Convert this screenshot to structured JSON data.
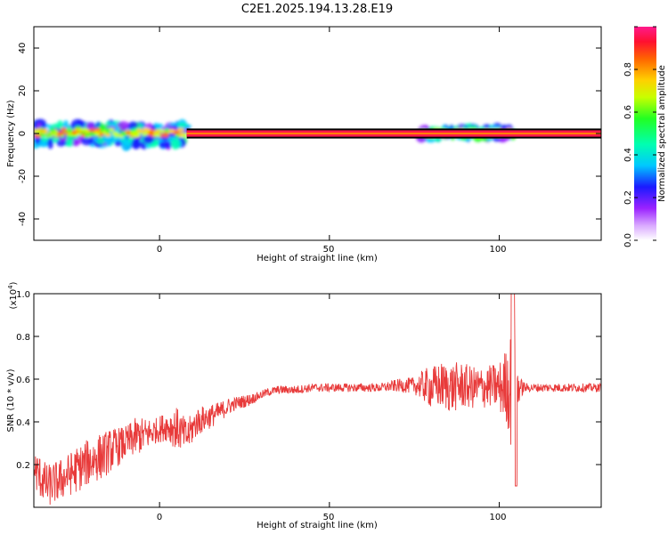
{
  "title": "C2E1.2025.194.13.28.E19",
  "colors": {
    "snr_line": "#e83a3a",
    "band_fill": "#ff1a4a",
    "band_core": "#ff7f00",
    "band_edge": "#000000"
  },
  "chart_data": [
    {
      "type": "heatmap",
      "xlabel": "Height of straight line (km)",
      "ylabel": "Frequency (Hz)",
      "xlim": [
        -37,
        130
      ],
      "ylim": [
        -50,
        50
      ],
      "x_ticks": [
        "0",
        "50",
        "100"
      ],
      "y_ticks": [
        "40",
        "20",
        "0",
        "-20",
        "-40"
      ],
      "colorbar": {
        "label": "Normalized spectral amplitude",
        "range": [
          0.0,
          1.0
        ],
        "ticks": [
          "0.0",
          "0.2",
          "0.4",
          "0.6",
          "0.8"
        ],
        "colormap": "rainbow (white-violet-blue-cyan-green-yellow-orange-red-magenta)"
      },
      "features": [
        {
          "name": "continuous band",
          "x_range": [
            8,
            130
          ],
          "freq_center": 0,
          "freq_halfwidth": 1.5,
          "amplitude": 1.0
        },
        {
          "name": "broadband noise",
          "x_range": [
            -37,
            8
          ],
          "freq_range": [
            -12,
            8
          ],
          "amplitude": 0.5
        },
        {
          "name": "noise patch",
          "x_range": [
            77,
            104
          ],
          "freq_range": [
            -3,
            5
          ],
          "amplitude": 0.5
        }
      ]
    },
    {
      "type": "line",
      "xlabel": "Height of straight line (km)",
      "ylabel": "SNR (10 * v/v)",
      "y_multiplier": "(x10",
      "y_multiplier_exp": "4",
      "xlim": [
        -37,
        130
      ],
      "ylim": [
        0.0,
        1.0
      ],
      "x_ticks": [
        "0",
        "50",
        "100"
      ],
      "y_ticks": [
        "0.2",
        "0.4",
        "0.6",
        "0.8",
        "1.0"
      ],
      "series": [
        {
          "x": [
            -37,
            -33,
            -30,
            -27,
            -24,
            -20,
            -17,
            -14,
            -10,
            -7,
            -4,
            -1,
            2,
            5,
            8,
            11,
            14,
            17,
            20,
            23,
            26,
            29,
            32,
            35,
            40,
            45,
            50,
            55,
            60,
            65,
            70,
            75,
            78,
            80,
            83,
            86,
            89,
            92,
            95,
            98,
            100,
            102,
            103,
            104,
            105,
            106,
            108,
            112,
            116,
            120,
            125,
            130
          ],
          "y": [
            0.18,
            0.1,
            0.12,
            0.15,
            0.18,
            0.22,
            0.24,
            0.27,
            0.3,
            0.33,
            0.34,
            0.36,
            0.38,
            0.37,
            0.33,
            0.4,
            0.42,
            0.44,
            0.47,
            0.49,
            0.5,
            0.52,
            0.54,
            0.55,
            0.55,
            0.56,
            0.56,
            0.56,
            0.56,
            0.56,
            0.57,
            0.57,
            0.57,
            0.56,
            0.57,
            0.56,
            0.57,
            0.56,
            0.56,
            0.57,
            0.56,
            0.57,
            0.56,
            0.55,
            0.56,
            0.56,
            0.56,
            0.56,
            0.56,
            0.56,
            0.56,
            0.56
          ],
          "spread": [
            0.1,
            0.1,
            0.1,
            0.1,
            0.11,
            0.11,
            0.11,
            0.1,
            0.08,
            0.09,
            0.08,
            0.06,
            0.07,
            0.1,
            0.08,
            0.07,
            0.06,
            0.05,
            0.04,
            0.03,
            0.03,
            0.02,
            0.02,
            0.02,
            0.02,
            0.02,
            0.02,
            0.02,
            0.02,
            0.02,
            0.03,
            0.04,
            0.08,
            0.1,
            0.11,
            0.12,
            0.11,
            0.1,
            0.1,
            0.1,
            0.12,
            0.18,
            0.22,
            0.38,
            0.22,
            0.05,
            0.02,
            0.02,
            0.02,
            0.02,
            0.02,
            0.02
          ]
        }
      ]
    }
  ]
}
